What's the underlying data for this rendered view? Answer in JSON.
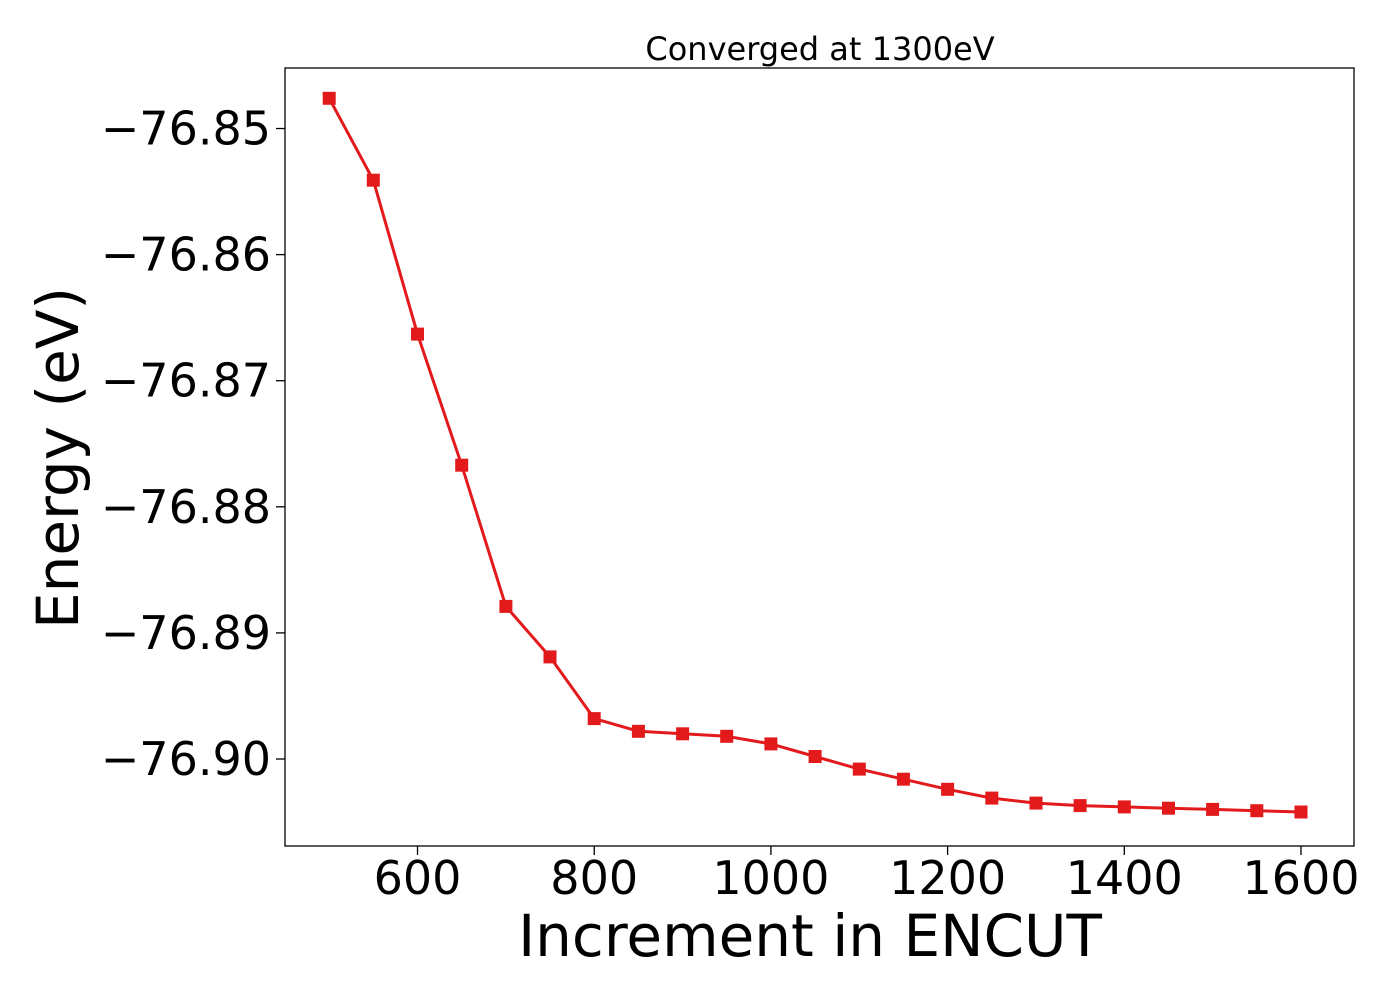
{
  "chart_data": {
    "type": "line",
    "title": "Converged at 1300eV",
    "xlabel": "Increment in ENCUT",
    "ylabel": "Energy (eV)",
    "xlim": [
      450,
      1660
    ],
    "ylim": [
      -76.9069,
      -76.8452
    ],
    "xticks": [
      600,
      800,
      1000,
      1200,
      1400,
      1600
    ],
    "xtick_labels": [
      "600",
      "800",
      "1000",
      "1200",
      "1400",
      "1600"
    ],
    "yticks": [
      -76.85,
      -76.86,
      -76.87,
      -76.88,
      -76.89,
      -76.9
    ],
    "ytick_labels": [
      "−76.85",
      "−76.86",
      "−76.87",
      "−76.88",
      "−76.89",
      "−76.90"
    ],
    "grid": false,
    "series": [
      {
        "marker": "square",
        "color": "#e31a1c",
        "x": [
          500,
          550,
          600,
          650,
          700,
          750,
          800,
          850,
          900,
          950,
          1000,
          1050,
          1100,
          1150,
          1200,
          1250,
          1300,
          1350,
          1400,
          1450,
          1500,
          1550,
          1600
        ],
        "y": [
          -76.8476,
          -76.8541,
          -76.8663,
          -76.8767,
          -76.8879,
          -76.8919,
          -76.8968,
          -76.8978,
          -76.898,
          -76.8982,
          -76.8988,
          -76.8998,
          -76.9008,
          -76.9016,
          -76.9024,
          -76.9031,
          -76.9035,
          -76.9037,
          -76.9038,
          -76.9039,
          -76.904,
          -76.9041,
          -76.9042
        ]
      }
    ]
  }
}
